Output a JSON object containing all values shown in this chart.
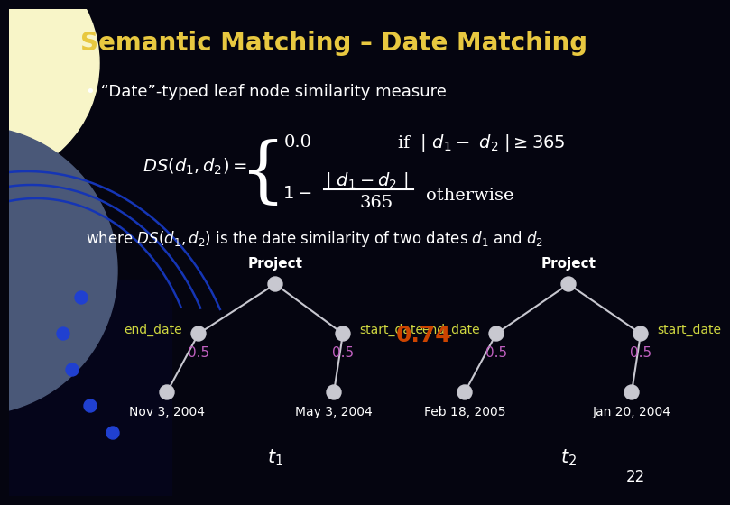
{
  "title": "Semantic Matching – Date Matching",
  "title_color": "#E8C840",
  "bg_color": "#050510",
  "slide_number": "22",
  "bullet": "• “Date”-typed leaf node similarity measure",
  "bullet_color": "#FFFFFF",
  "formula_color": "#FFFFFF",
  "node_color": "#C8C8D0",
  "edge_color": "#C8C8D0",
  "label_color": "#D0D840",
  "weight_color": "#C060C0",
  "match_score_color": "#CC4400",
  "match_score": "0.74",
  "tree1_project": "Project",
  "tree2_project": "Project",
  "tree1_end_date": "end_date",
  "tree1_start_date": "start_date",
  "tree2_end_date": "end_date",
  "tree2_start_date": "start_date",
  "tree1_w1": "0.5",
  "tree1_w2": "0.5",
  "tree2_w1": "0.5",
  "tree2_w2": "0.5",
  "date1_left": "Nov 3, 2004",
  "date1_right": "May 3, 2004",
  "date2_left": "Feb 18, 2005",
  "date2_right": "Jan 20, 2004",
  "where_text_color": "#FFFFFF",
  "bg_grad_color": "#000020"
}
